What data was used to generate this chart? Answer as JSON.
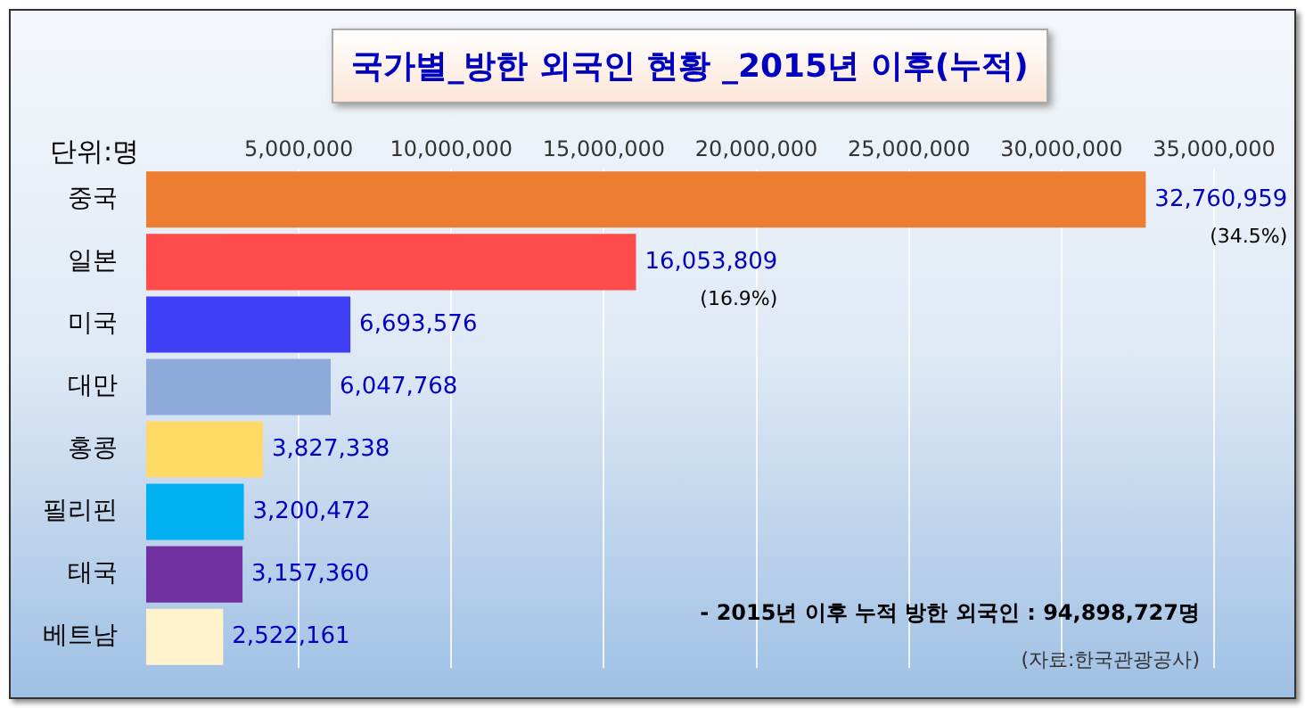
{
  "chart_data": {
    "type": "bar",
    "orientation": "horizontal",
    "title": "국가별_방한 외국인 현황 _2015년 이후(누적)",
    "ylabel": "단위:명",
    "categories": [
      "중국",
      "일본",
      "미국",
      "대만",
      "홍콩",
      "필리핀",
      "태국",
      "베트남"
    ],
    "values": [
      32760959,
      16053809,
      6693576,
      6047768,
      3827338,
      3200472,
      3157360,
      2522161
    ],
    "value_labels": [
      "32,760,959",
      "16,053,809",
      "6,693,576",
      "6,047,768",
      "3,827,338",
      "3,200,472",
      "3,157,360",
      "2,522,161"
    ],
    "colors": [
      "#ed7d31",
      "#ff4b4b",
      "#3f3ff5",
      "#8eaadb",
      "#ffd966",
      "#00b0f0",
      "#7030a0",
      "#fff2cc"
    ],
    "xlim": [
      0,
      35000000
    ],
    "xticks": [
      {
        "value": 5000000,
        "label": "5,000,000"
      },
      {
        "value": 10000000,
        "label": "10,000,000"
      },
      {
        "value": 15000000,
        "label": "15,000,000"
      },
      {
        "value": 20000000,
        "label": "20,000,000"
      },
      {
        "value": 25000000,
        "label": "25,000,000"
      },
      {
        "value": 30000000,
        "label": "30,000,000"
      },
      {
        "value": 35000000,
        "label": "35,000,000"
      }
    ],
    "grid": "x",
    "legend": false,
    "annotations": [
      "(34.5%)",
      "(16.9%)",
      "- 2015년 이후 누적 방한 외국인 : 94,898,727명",
      "(자료:한국관광공사)"
    ]
  }
}
